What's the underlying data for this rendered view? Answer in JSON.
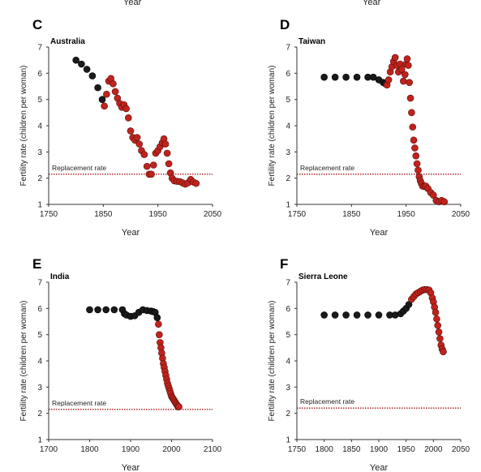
{
  "header_labels": [
    "Year",
    "Year"
  ],
  "chart_data": [
    {
      "letter": "C",
      "title": "Australia",
      "type": "scatter",
      "xlabel": "Year",
      "ylabel": "Fertility rate (children per woman)",
      "xlim": [
        1750,
        2050
      ],
      "ylim": [
        1,
        7
      ],
      "xticks": [
        1750,
        1850,
        1950,
        2050
      ],
      "yticks": [
        1,
        2,
        3,
        4,
        5,
        6,
        7
      ],
      "replacement_label": "Replacement rate",
      "replacement_value": 2.15,
      "red_from_year": 1850,
      "points": [
        [
          1800,
          6.5
        ],
        [
          1810,
          6.35
        ],
        [
          1820,
          6.15
        ],
        [
          1830,
          5.9
        ],
        [
          1840,
          5.45
        ],
        [
          1848,
          5.0
        ],
        [
          1852,
          4.75
        ],
        [
          1856,
          5.2
        ],
        [
          1860,
          5.7
        ],
        [
          1864,
          5.8
        ],
        [
          1868,
          5.6
        ],
        [
          1872,
          5.3
        ],
        [
          1876,
          5.05
        ],
        [
          1880,
          4.85
        ],
        [
          1884,
          4.7
        ],
        [
          1888,
          4.8
        ],
        [
          1892,
          4.65
        ],
        [
          1896,
          4.3
        ],
        [
          1900,
          3.8
        ],
        [
          1904,
          3.55
        ],
        [
          1908,
          3.45
        ],
        [
          1912,
          3.55
        ],
        [
          1916,
          3.3
        ],
        [
          1920,
          3.05
        ],
        [
          1925,
          2.9
        ],
        [
          1930,
          2.45
        ],
        [
          1934,
          2.15
        ],
        [
          1938,
          2.15
        ],
        [
          1942,
          2.5
        ],
        [
          1946,
          2.95
        ],
        [
          1950,
          3.05
        ],
        [
          1954,
          3.2
        ],
        [
          1958,
          3.35
        ],
        [
          1961,
          3.5
        ],
        [
          1964,
          3.3
        ],
        [
          1967,
          2.95
        ],
        [
          1970,
          2.55
        ],
        [
          1973,
          2.2
        ],
        [
          1976,
          2.0
        ],
        [
          1980,
          1.9
        ],
        [
          1985,
          1.88
        ],
        [
          1990,
          1.87
        ],
        [
          1995,
          1.82
        ],
        [
          2000,
          1.77
        ],
        [
          2005,
          1.82
        ],
        [
          2010,
          1.95
        ],
        [
          2015,
          1.85
        ],
        [
          2020,
          1.8
        ]
      ]
    },
    {
      "letter": "D",
      "title": "Taiwan",
      "type": "scatter",
      "xlabel": "Year",
      "ylabel": "Fertility rate (children per woman)",
      "xlim": [
        1750,
        2050
      ],
      "ylim": [
        1,
        7
      ],
      "xticks": [
        1750,
        1850,
        1950,
        2050
      ],
      "yticks": [
        1,
        2,
        3,
        4,
        5,
        6,
        7
      ],
      "replacement_label": "Replacement rate",
      "replacement_value": 2.15,
      "red_from_year": 1915,
      "points": [
        [
          1800,
          5.85
        ],
        [
          1820,
          5.85
        ],
        [
          1840,
          5.85
        ],
        [
          1860,
          5.85
        ],
        [
          1880,
          5.85
        ],
        [
          1890,
          5.85
        ],
        [
          1900,
          5.75
        ],
        [
          1908,
          5.65
        ],
        [
          1912,
          5.6
        ],
        [
          1915,
          5.55
        ],
        [
          1918,
          5.75
        ],
        [
          1921,
          6.05
        ],
        [
          1924,
          6.25
        ],
        [
          1927,
          6.45
        ],
        [
          1930,
          6.6
        ],
        [
          1933,
          6.3
        ],
        [
          1936,
          6.05
        ],
        [
          1939,
          6.35
        ],
        [
          1942,
          6.15
        ],
        [
          1945,
          5.7
        ],
        [
          1948,
          5.95
        ],
        [
          1950,
          6.35
        ],
        [
          1952,
          6.55
        ],
        [
          1954,
          6.3
        ],
        [
          1956,
          5.65
        ],
        [
          1958,
          5.05
        ],
        [
          1960,
          4.5
        ],
        [
          1962,
          3.95
        ],
        [
          1964,
          3.45
        ],
        [
          1966,
          3.15
        ],
        [
          1968,
          2.85
        ],
        [
          1970,
          2.55
        ],
        [
          1972,
          2.3
        ],
        [
          1974,
          2.05
        ],
        [
          1976,
          1.9
        ],
        [
          1978,
          1.8
        ],
        [
          1980,
          1.7
        ],
        [
          1983,
          1.68
        ],
        [
          1986,
          1.7
        ],
        [
          1990,
          1.6
        ],
        [
          1995,
          1.45
        ],
        [
          2000,
          1.35
        ],
        [
          2005,
          1.15
        ],
        [
          2010,
          1.1
        ],
        [
          2015,
          1.15
        ],
        [
          2020,
          1.1
        ]
      ]
    },
    {
      "letter": "E",
      "title": "India",
      "type": "scatter",
      "xlabel": "Year",
      "ylabel": "Fertility rate (children per woman)",
      "xlim": [
        1700,
        2100
      ],
      "ylim": [
        1,
        7
      ],
      "xticks": [
        1700,
        1800,
        1900,
        2000,
        2100
      ],
      "yticks": [
        1,
        2,
        3,
        4,
        5,
        6,
        7
      ],
      "replacement_label": "Replacement rate",
      "replacement_value": 2.15,
      "red_from_year": 1968,
      "points": [
        [
          1800,
          5.95
        ],
        [
          1820,
          5.95
        ],
        [
          1840,
          5.95
        ],
        [
          1860,
          5.95
        ],
        [
          1880,
          5.95
        ],
        [
          1885,
          5.8
        ],
        [
          1890,
          5.75
        ],
        [
          1900,
          5.7
        ],
        [
          1910,
          5.72
        ],
        [
          1920,
          5.85
        ],
        [
          1930,
          5.95
        ],
        [
          1940,
          5.92
        ],
        [
          1950,
          5.9
        ],
        [
          1955,
          5.88
        ],
        [
          1960,
          5.85
        ],
        [
          1965,
          5.65
        ],
        [
          1968,
          5.4
        ],
        [
          1970,
          5.0
        ],
        [
          1972,
          4.7
        ],
        [
          1974,
          4.5
        ],
        [
          1976,
          4.3
        ],
        [
          1978,
          4.1
        ],
        [
          1980,
          3.9
        ],
        [
          1982,
          3.75
        ],
        [
          1984,
          3.6
        ],
        [
          1986,
          3.45
        ],
        [
          1988,
          3.3
        ],
        [
          1990,
          3.15
        ],
        [
          1992,
          3.05
        ],
        [
          1994,
          2.95
        ],
        [
          1996,
          2.85
        ],
        [
          1998,
          2.75
        ],
        [
          2000,
          2.65
        ],
        [
          2002,
          2.6
        ],
        [
          2004,
          2.55
        ],
        [
          2006,
          2.5
        ],
        [
          2008,
          2.45
        ],
        [
          2010,
          2.4
        ],
        [
          2012,
          2.35
        ],
        [
          2014,
          2.3
        ],
        [
          2016,
          2.25
        ],
        [
          2018,
          2.25
        ]
      ]
    },
    {
      "letter": "F",
      "title": "Sierra Leone",
      "type": "scatter",
      "xlabel": "Year",
      "ylabel": "Fertility rate (children per woman)",
      "xlim": [
        1750,
        2050
      ],
      "ylim": [
        1,
        7
      ],
      "xticks": [
        1750,
        1800,
        1850,
        1900,
        1950,
        2000,
        2050
      ],
      "yticks": [
        1,
        2,
        3,
        4,
        5,
        6,
        7
      ],
      "replacement_label": "Replacement rate",
      "replacement_value": 2.2,
      "red_from_year": 1960,
      "points": [
        [
          1800,
          5.75
        ],
        [
          1820,
          5.75
        ],
        [
          1840,
          5.75
        ],
        [
          1860,
          5.75
        ],
        [
          1880,
          5.75
        ],
        [
          1900,
          5.75
        ],
        [
          1920,
          5.75
        ],
        [
          1930,
          5.75
        ],
        [
          1940,
          5.8
        ],
        [
          1945,
          5.9
        ],
        [
          1950,
          6.0
        ],
        [
          1955,
          6.15
        ],
        [
          1960,
          6.35
        ],
        [
          1964,
          6.45
        ],
        [
          1968,
          6.55
        ],
        [
          1972,
          6.6
        ],
        [
          1976,
          6.65
        ],
        [
          1980,
          6.7
        ],
        [
          1984,
          6.72
        ],
        [
          1988,
          6.72
        ],
        [
          1992,
          6.7
        ],
        [
          1995,
          6.6
        ],
        [
          1998,
          6.4
        ],
        [
          2000,
          6.25
        ],
        [
          2002,
          6.05
        ],
        [
          2004,
          5.85
        ],
        [
          2006,
          5.6
        ],
        [
          2008,
          5.35
        ],
        [
          2010,
          5.1
        ],
        [
          2012,
          4.85
        ],
        [
          2014,
          4.6
        ],
        [
          2016,
          4.45
        ],
        [
          2018,
          4.35
        ]
      ]
    }
  ],
  "colors": {
    "dot_black": "#1a1a1a",
    "dot_red": "#c0231d",
    "dot_red_edge": "#5a0f0c",
    "replacement_line": "#a01414",
    "axis": "#333333"
  }
}
